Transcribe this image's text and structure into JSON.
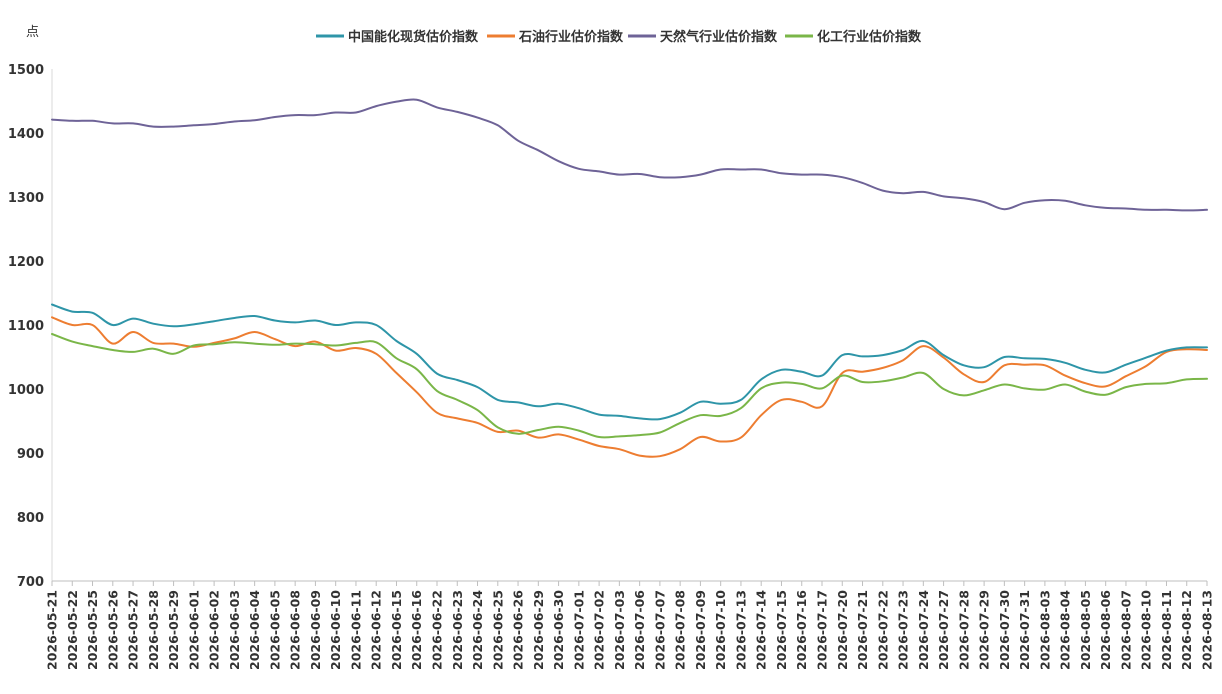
{
  "chart_data": {
    "type": "line",
    "y_unit": "点",
    "ylim": [
      700,
      1500
    ],
    "yticks": [
      700,
      800,
      900,
      1000,
      1100,
      1200,
      1300,
      1400,
      1500
    ],
    "grid": false,
    "legend_position": "top-center",
    "categories": [
      "2026-05-21",
      "2026-05-22",
      "2026-05-25",
      "2026-05-26",
      "2026-05-27",
      "2026-05-28",
      "2026-05-29",
      "2026-06-01",
      "2026-06-02",
      "2026-06-03",
      "2026-06-04",
      "2026-06-05",
      "2026-06-08",
      "2026-06-09",
      "2026-06-10",
      "2026-06-11",
      "2026-06-12",
      "2026-06-15",
      "2026-06-16",
      "2026-06-22",
      "2026-06-23",
      "2026-06-24",
      "2026-06-25",
      "2026-06-26",
      "2026-06-29",
      "2026-06-30",
      "2026-07-01",
      "2026-07-02",
      "2026-07-03",
      "2026-07-06",
      "2026-07-07",
      "2026-07-08",
      "2026-07-09",
      "2026-07-10",
      "2026-07-13",
      "2026-07-14",
      "2026-07-15",
      "2026-07-16",
      "2026-07-17",
      "2026-07-20",
      "2026-07-21",
      "2026-07-22",
      "2026-07-23",
      "2026-07-24",
      "2026-07-27",
      "2026-07-28",
      "2026-07-29",
      "2026-07-30",
      "2026-07-31",
      "2026-08-03",
      "2026-08-04",
      "2026-08-05",
      "2026-08-06",
      "2026-08-07",
      "2026-08-10",
      "2026-08-11",
      "2026-08-12",
      "2026-08-13"
    ],
    "series": [
      {
        "name": "中国能化现货估价指数",
        "color": "#2e95a8",
        "values": [
          1132,
          1121,
          1119,
          1100,
          1110,
          1102,
          1098,
          1101,
          1106,
          1111,
          1114,
          1107,
          1104,
          1107,
          1100,
          1104,
          1100,
          1075,
          1055,
          1024,
          1014,
          1003,
          983,
          979,
          973,
          977,
          970,
          960,
          958,
          954,
          953,
          963,
          980,
          977,
          983,
          1015,
          1030,
          1027,
          1021,
          1053,
          1051,
          1053,
          1061,
          1075,
          1053,
          1037,
          1034,
          1050,
          1048,
          1047,
          1041,
          1030,
          1026,
          1038,
          1049,
          1060,
          1065,
          1065
        ]
      },
      {
        "name": "石油行业估价指数",
        "color": "#ed7d31",
        "values": [
          1112,
          1100,
          1100,
          1071,
          1089,
          1072,
          1071,
          1066,
          1072,
          1079,
          1089,
          1078,
          1067,
          1074,
          1060,
          1064,
          1055,
          1025,
          995,
          963,
          954,
          947,
          933,
          935,
          924,
          929,
          921,
          911,
          906,
          896,
          895,
          906,
          925,
          918,
          924,
          959,
          983,
          980,
          973,
          1025,
          1027,
          1033,
          1045,
          1067,
          1049,
          1023,
          1011,
          1037,
          1038,
          1037,
          1021,
          1009,
          1004,
          1020,
          1036,
          1058,
          1062,
          1061
        ]
      },
      {
        "name": "天然气行业估价指数",
        "color": "#6e6397",
        "values": [
          1421,
          1419,
          1419,
          1415,
          1415,
          1410,
          1410,
          1412,
          1414,
          1418,
          1420,
          1425,
          1428,
          1428,
          1432,
          1432,
          1442,
          1449,
          1452,
          1440,
          1433,
          1424,
          1412,
          1388,
          1373,
          1356,
          1344,
          1340,
          1335,
          1336,
          1331,
          1331,
          1335,
          1343,
          1343,
          1343,
          1337,
          1335,
          1335,
          1331,
          1322,
          1310,
          1306,
          1308,
          1301,
          1298,
          1292,
          1281,
          1291,
          1295,
          1294,
          1287,
          1283,
          1282,
          1280,
          1280,
          1279,
          1280
        ]
      },
      {
        "name": "化工行业估价指数",
        "color": "#7ab648",
        "values": [
          1086,
          1074,
          1067,
          1061,
          1058,
          1063,
          1055,
          1068,
          1070,
          1073,
          1071,
          1069,
          1071,
          1070,
          1068,
          1072,
          1073,
          1048,
          1031,
          997,
          983,
          967,
          940,
          930,
          936,
          941,
          935,
          925,
          926,
          928,
          932,
          947,
          959,
          958,
          970,
          1001,
          1010,
          1008,
          1001,
          1021,
          1011,
          1012,
          1018,
          1025,
          1000,
          990,
          998,
          1007,
          1001,
          999,
          1007,
          996,
          991,
          1003,
          1008,
          1009,
          1015,
          1016
        ]
      }
    ]
  }
}
